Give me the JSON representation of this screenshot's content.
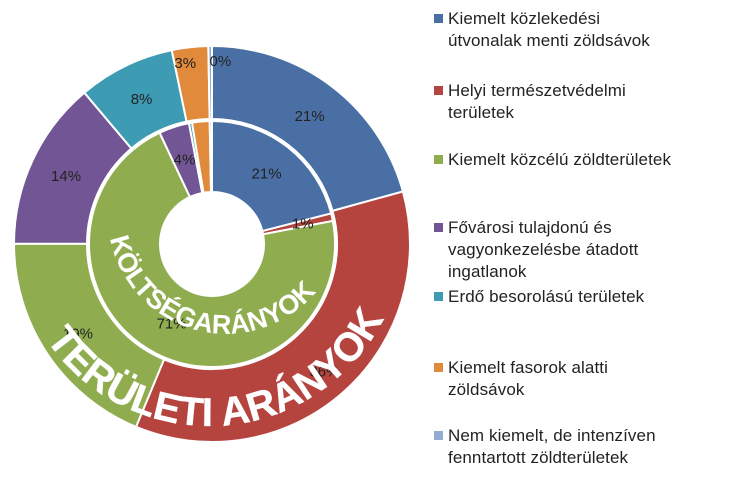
{
  "chart_data": {
    "type": "donut",
    "categories": [
      "Kiemelt közlekedési\nútvonalak menti zöldsávok",
      "Helyi természetvédelmi\nterületek",
      "Kiemelt közcélú zöldterületek",
      "Fővárosi tulajdonú és\nvagyonkezelésbe átadott\ningatlanok",
      "Erdő besorolású területek",
      "Kiemelt fasorok alatti\nzöldsávok",
      "Nem kiemelt, de intenzíven\nfenntartott zöldterületek"
    ],
    "colors": [
      "#4a6fa5",
      "#b5443f",
      "#8fad4f",
      "#725594",
      "#3d9bb3",
      "#e28a3c",
      "#93acd1"
    ],
    "series": [
      {
        "name": "TERÜLETI ARÁNYOK",
        "ring": "outer",
        "values": [
          21,
          36,
          19,
          14,
          8,
          3,
          0.3
        ],
        "labels": [
          "21%",
          "36%",
          "19%",
          "14%",
          "8%",
          "3%",
          "0%"
        ]
      },
      {
        "name": "KÖLTSÉGARÁNYOK",
        "ring": "inner",
        "values": [
          21,
          1,
          71,
          4,
          0.4,
          2.3,
          0.3
        ],
        "labels": [
          "21%",
          "1%",
          "71%",
          "4%",
          "",
          "",
          ""
        ]
      }
    ]
  }
}
